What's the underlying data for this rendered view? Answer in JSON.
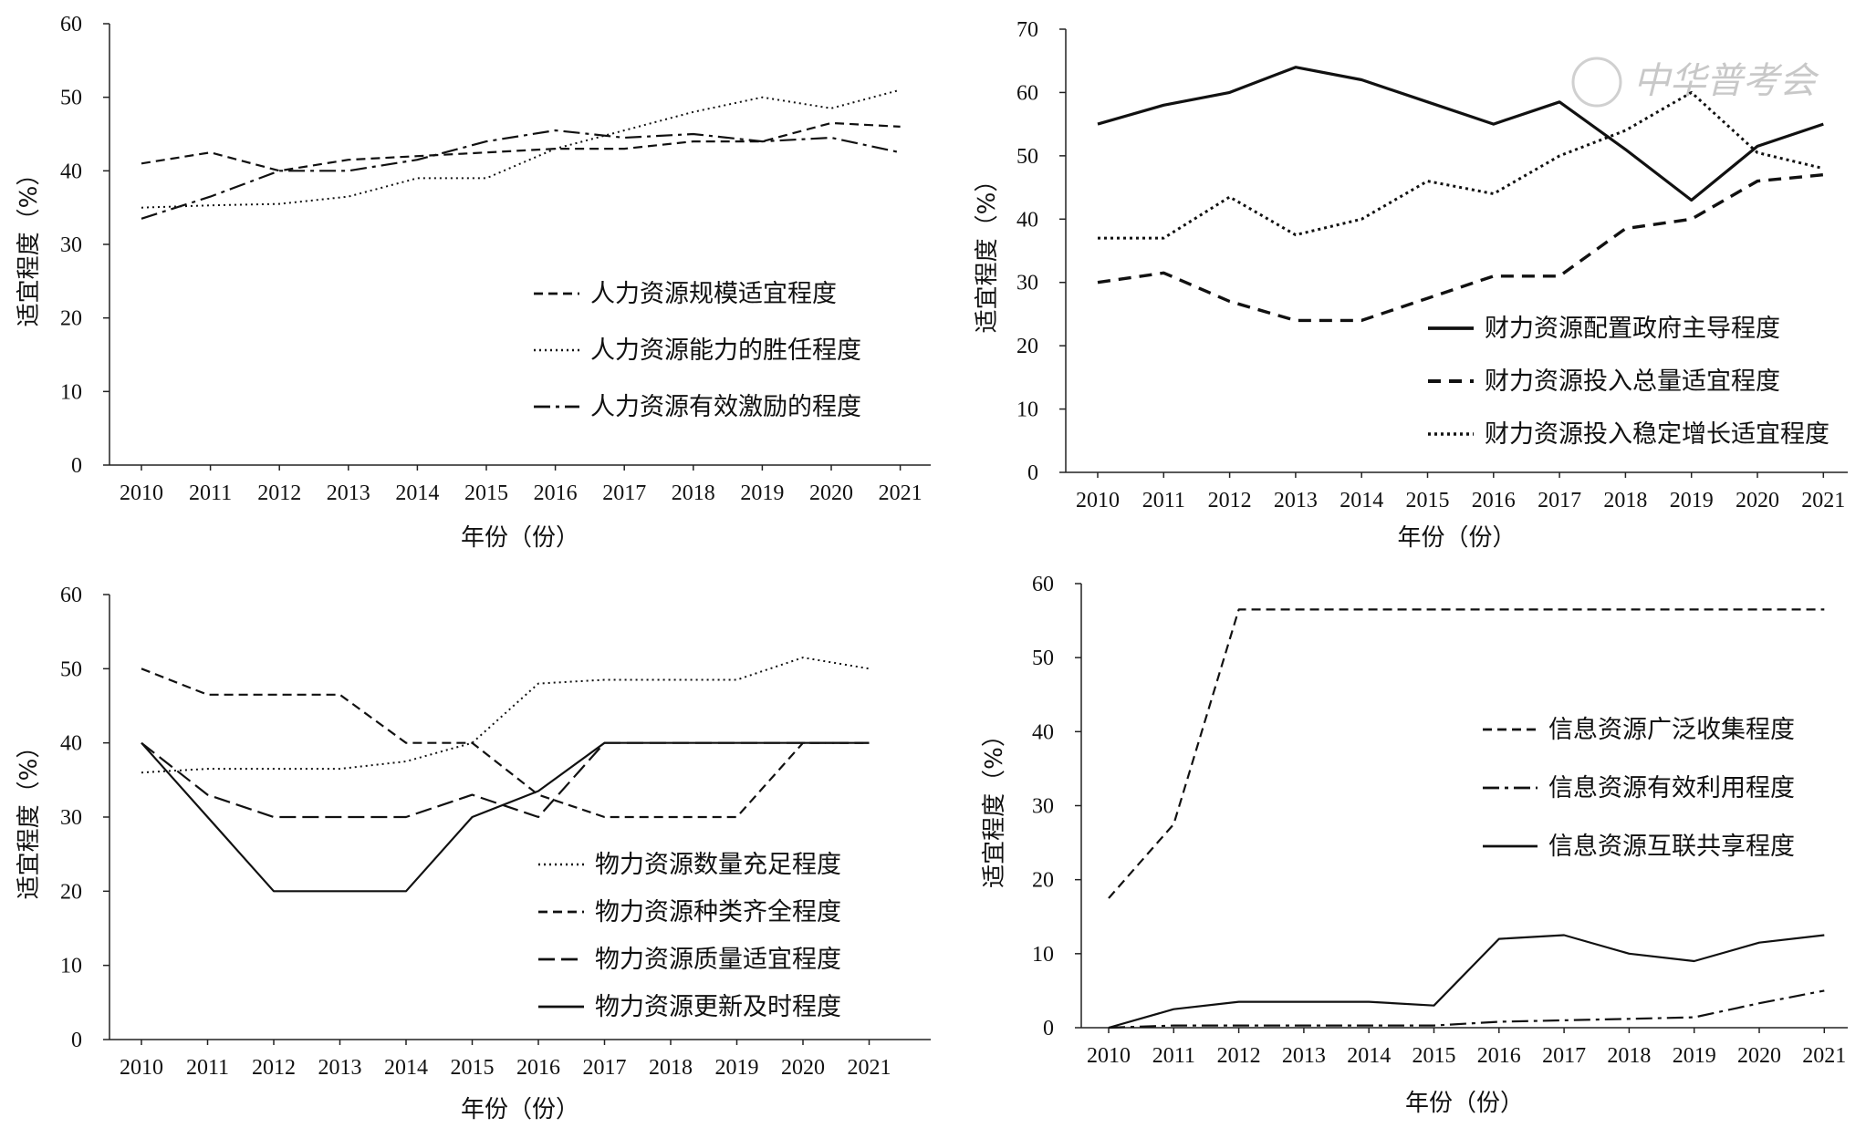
{
  "watermark": {
    "text": "中华普考会"
  },
  "chart_data": [
    {
      "type": "line",
      "xlabel": "年份（份）",
      "ylabel": "适宜程度（%）",
      "ylim": [
        0,
        60
      ],
      "yticks": [
        0,
        10,
        20,
        30,
        40,
        50,
        60
      ],
      "legend_position": "lower-right",
      "categories": [
        "2010",
        "2011",
        "2012",
        "2013",
        "2014",
        "2015",
        "2016",
        "2017",
        "2018",
        "2019",
        "2020",
        "2021"
      ],
      "series": [
        {
          "name": "人力资源规模适宜程度",
          "style": "dashed",
          "values": [
            41,
            42.5,
            40,
            41.5,
            42,
            42.5,
            43,
            43,
            44,
            44,
            46.5,
            46
          ]
        },
        {
          "name": "人力资源能力的胜任程度",
          "style": "dotted",
          "values": [
            35,
            35.3,
            35.5,
            36.5,
            39,
            39,
            43,
            45.5,
            48,
            50,
            48.5,
            51
          ]
        },
        {
          "name": "人力资源有效激励的程度",
          "style": "dashdot",
          "values": [
            33.5,
            36.5,
            40,
            40,
            41.5,
            44,
            45.5,
            44.5,
            45,
            44,
            44.5,
            42.5
          ]
        }
      ]
    },
    {
      "type": "line",
      "xlabel": "年份（份）",
      "ylabel": "适宜程度（%）",
      "ylim": [
        0,
        70
      ],
      "yticks": [
        0,
        10,
        20,
        30,
        40,
        50,
        60,
        70
      ],
      "legend_position": "lower-right",
      "categories": [
        "2010",
        "2011",
        "2012",
        "2013",
        "2014",
        "2015",
        "2016",
        "2017",
        "2018",
        "2019",
        "2020",
        "2021"
      ],
      "series": [
        {
          "name": "财力资源配置政府主导程度",
          "style": "solid-thick",
          "values": [
            55,
            58,
            60,
            64,
            62,
            58.5,
            55,
            58.5,
            51,
            43,
            51.5,
            55
          ]
        },
        {
          "name": "财力资源投入总量适宜程度",
          "style": "dashed-thick",
          "values": [
            30,
            31.5,
            27,
            24,
            24,
            27.5,
            31,
            31,
            38.5,
            40,
            46,
            47
          ]
        },
        {
          "name": "财力资源投入稳定增长适宜程度",
          "style": "dotted-thick",
          "values": [
            37,
            37,
            43.5,
            37.5,
            40,
            46,
            44,
            50,
            54,
            60,
            50.5,
            48
          ]
        }
      ]
    },
    {
      "type": "line",
      "xlabel": "年份（份）",
      "ylabel": "适宜程度（%）",
      "ylim": [
        0,
        60
      ],
      "yticks": [
        0,
        10,
        20,
        30,
        40,
        50,
        60
      ],
      "legend_position": "lower-right",
      "categories": [
        "2010",
        "2011",
        "2012",
        "2013",
        "2014",
        "2015",
        "2016",
        "2017",
        "2018",
        "2019",
        "2020",
        "2021"
      ],
      "series": [
        {
          "name": "物力资源数量充足程度",
          "style": "dotted",
          "values": [
            36,
            36.5,
            36.5,
            36.5,
            37.5,
            40,
            48,
            48.5,
            48.5,
            48.5,
            51.5,
            50
          ]
        },
        {
          "name": "物力资源种类齐全程度",
          "style": "dashed",
          "values": [
            50,
            46.5,
            46.5,
            46.5,
            40,
            40,
            33,
            30,
            30,
            30,
            40,
            40
          ]
        },
        {
          "name": "物力资源质量适宜程度",
          "style": "longdash",
          "values": [
            40,
            33,
            30,
            30,
            30,
            33,
            30,
            40,
            40,
            40,
            40,
            40
          ]
        },
        {
          "name": "物力资源更新及时程度",
          "style": "solid",
          "values": [
            40,
            30,
            20,
            20,
            20,
            30,
            33.5,
            40,
            40,
            40,
            40,
            40
          ]
        }
      ]
    },
    {
      "type": "line",
      "xlabel": "年份（份）",
      "ylabel": "适宜程度（%）",
      "ylim": [
        0,
        60
      ],
      "yticks": [
        0,
        10,
        20,
        30,
        40,
        50,
        60
      ],
      "legend_position": "right",
      "categories": [
        "2010",
        "2011",
        "2012",
        "2013",
        "2014",
        "2015",
        "2016",
        "2017",
        "2018",
        "2019",
        "2020",
        "2021"
      ],
      "series": [
        {
          "name": "信息资源广泛收集程度",
          "style": "dashed",
          "values": [
            17.5,
            27.5,
            56.5,
            56.5,
            56.5,
            56.5,
            56.5,
            56.5,
            56.5,
            56.5,
            56.5,
            56.5
          ]
        },
        {
          "name": "信息资源有效利用程度",
          "style": "dashdot",
          "values": [
            0,
            0.3,
            0.3,
            0.3,
            0.3,
            0.3,
            0.8,
            1,
            1.2,
            1.4,
            3.3,
            5
          ]
        },
        {
          "name": "信息资源互联共享程度",
          "style": "solid",
          "values": [
            0,
            2.5,
            3.5,
            3.5,
            3.5,
            3,
            12,
            12.5,
            10,
            9,
            11.5,
            12.5
          ]
        }
      ]
    }
  ]
}
